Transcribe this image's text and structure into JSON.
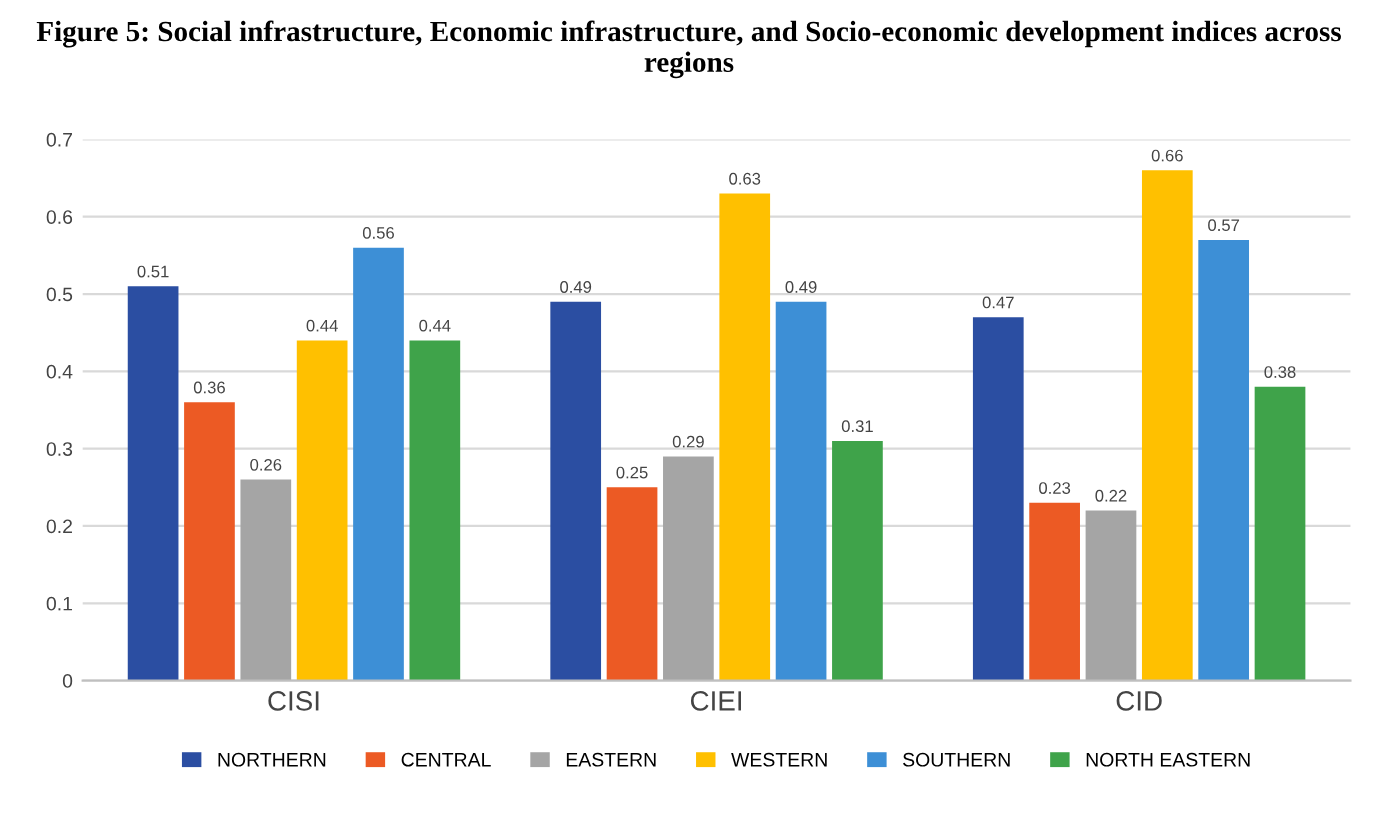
{
  "chart_data": {
    "type": "bar",
    "title": "Figure 5: Social infrastructure, Economic infrastructure, and Socio-economic development indices across regions",
    "categories": [
      "CISI",
      "CIEI",
      "CID"
    ],
    "series": [
      {
        "name": "NORTHERN",
        "color": "#2b4ea2",
        "values": [
          0.51,
          0.49,
          0.47
        ]
      },
      {
        "name": "CENTRAL",
        "color": "#ec5a24",
        "values": [
          0.36,
          0.25,
          0.23
        ]
      },
      {
        "name": "EASTERN",
        "color": "#a5a5a5",
        "values": [
          0.26,
          0.29,
          0.22
        ]
      },
      {
        "name": "WESTERN",
        "color": "#ffc000",
        "values": [
          0.44,
          0.63,
          0.66
        ]
      },
      {
        "name": "SOUTHERN",
        "color": "#3d8fd6",
        "values": [
          0.56,
          0.49,
          0.57
        ]
      },
      {
        "name": "NORTH EASTERN",
        "color": "#3fa34a",
        "values": [
          0.44,
          0.31,
          0.38
        ]
      }
    ],
    "ylim": [
      0,
      0.7
    ],
    "yticks": [
      0,
      0.1,
      0.2,
      0.3,
      0.4,
      0.5,
      0.6,
      0.7
    ],
    "grid": "y",
    "legend": "bottom",
    "data_labels": true
  }
}
